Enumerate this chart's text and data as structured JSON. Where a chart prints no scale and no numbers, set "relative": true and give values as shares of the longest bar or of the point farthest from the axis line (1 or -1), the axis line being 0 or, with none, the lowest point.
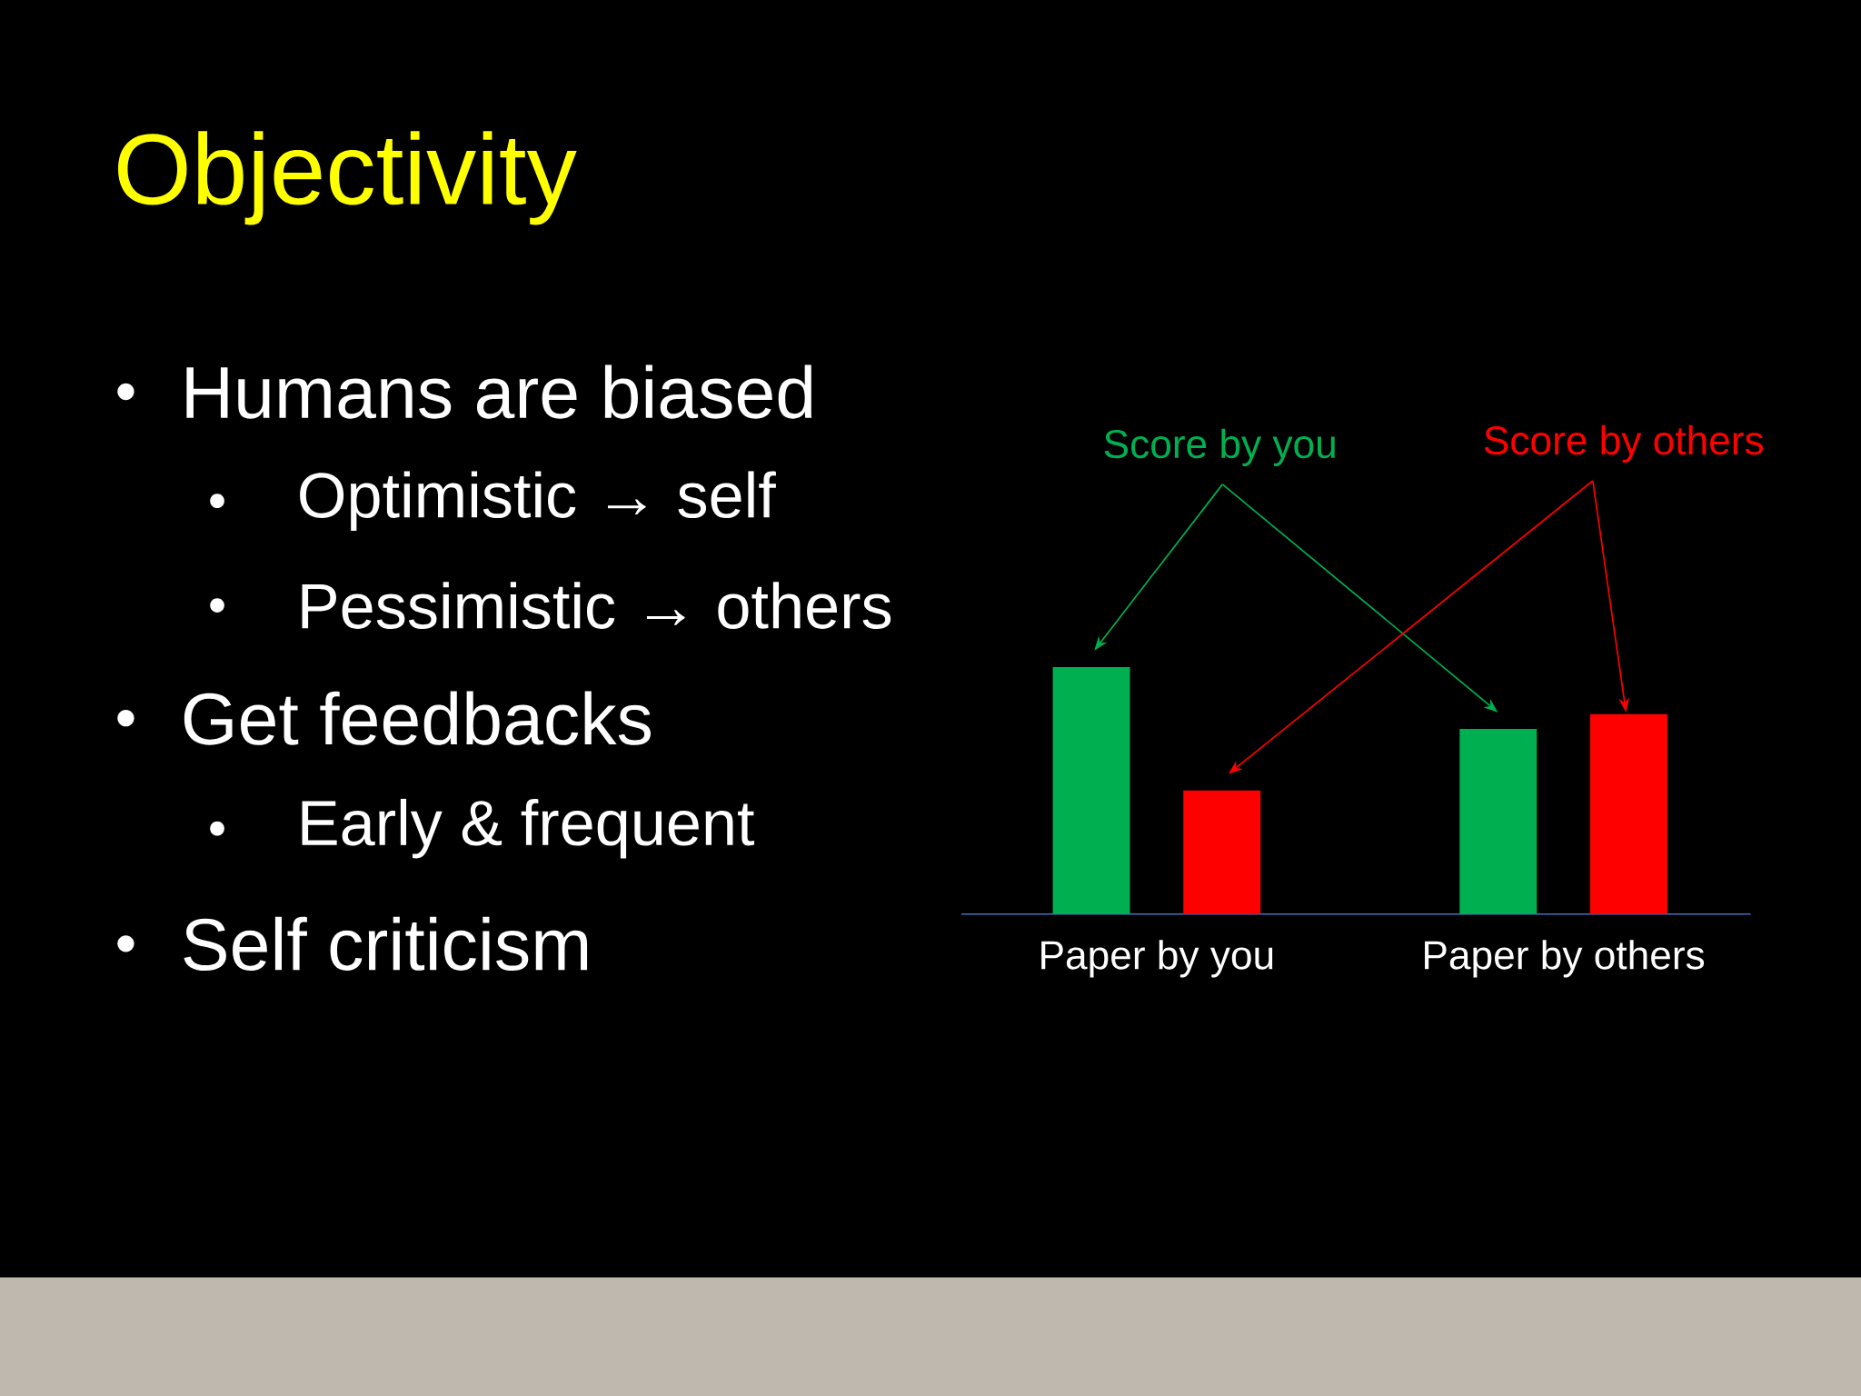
{
  "chart_data": {
    "type": "bar",
    "title": "Objectivity",
    "relative": true,
    "categories": [
      "Paper by you",
      "Paper by others"
    ],
    "series": [
      {
        "name": "Score by you",
        "color": "#00b050",
        "values": [
          1,
          0.75
        ]
      },
      {
        "name": "Score by others",
        "color": "#ff0000",
        "values": [
          0.5,
          0.81
        ]
      }
    ],
    "annotations": [
      "Humans are biased",
      "Optimistic → self",
      "Pessimistic → others",
      "Get feedbacks",
      "Early & frequent",
      "Self criticism"
    ]
  }
}
